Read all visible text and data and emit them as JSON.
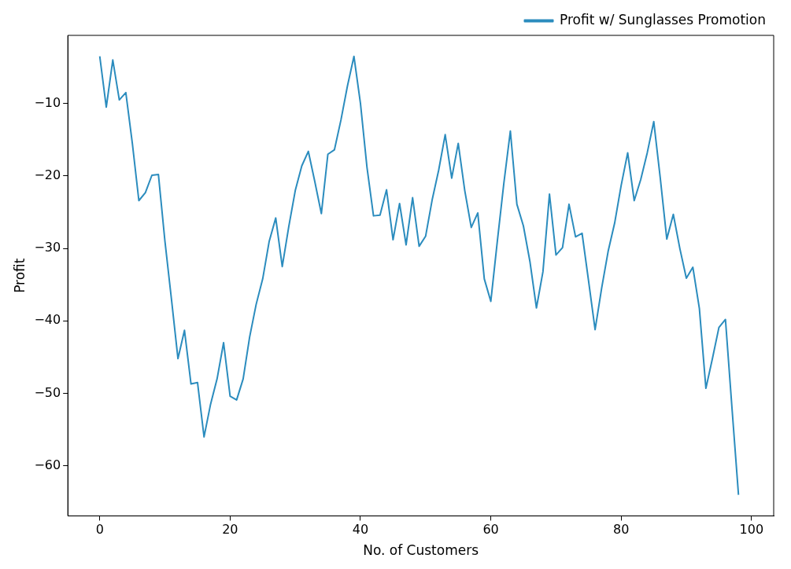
{
  "chart_data": {
    "type": "line",
    "xlabel": "No. of Customers",
    "ylabel": "Profit",
    "x": [
      0,
      1,
      2,
      3,
      4,
      5,
      6,
      7,
      8,
      9,
      10,
      11,
      12,
      13,
      14,
      15,
      16,
      17,
      18,
      19,
      20,
      21,
      22,
      23,
      24,
      25,
      26,
      27,
      28,
      29,
      30,
      31,
      32,
      33,
      34,
      35,
      36,
      37,
      38,
      39,
      40,
      41,
      42,
      43,
      44,
      45,
      46,
      47,
      48,
      49,
      50,
      51,
      52,
      53,
      54,
      55,
      56,
      57,
      58,
      59,
      60,
      61,
      62,
      63,
      64,
      65,
      66,
      67,
      68,
      69,
      70,
      71,
      72,
      73,
      74,
      75,
      76,
      77,
      78,
      79,
      80,
      81,
      82,
      83,
      84,
      85,
      86,
      87,
      88,
      89,
      90,
      91,
      92,
      93,
      94,
      95,
      96,
      97,
      98
    ],
    "series": [
      {
        "name": "Profit w/ Sunglasses Promotion",
        "color": "#2b8cbe",
        "values": [
          -3.5,
          -10.5,
          -4,
          -9.5,
          -8.5,
          -15.5,
          -23.4,
          -22.3,
          -19.9,
          -19.8,
          -29,
          -37,
          -45.2,
          -41.3,
          -48.7,
          -48.5,
          -56,
          -51.5,
          -48,
          -43,
          -50.4,
          -50.9,
          -48,
          -42.2,
          -37.7,
          -34.2,
          -29,
          -25.8,
          -32.5,
          -27,
          -22,
          -18.6,
          -16.6,
          -20.8,
          -25.2,
          -17,
          -16.4,
          -12.3,
          -7.6,
          -3.5,
          -10,
          -18.8,
          -25.5,
          -25.4,
          -21.9,
          -28.8,
          -23.8,
          -29.5,
          -23,
          -29.7,
          -28.3,
          -23.3,
          -19.2,
          -14.3,
          -20.3,
          -15.5,
          -22,
          -27.1,
          -25.1,
          -34.2,
          -37.3,
          -29,
          -21,
          -13.8,
          -23.9,
          -26.9,
          -31.8,
          -38.2,
          -33.2,
          -22.5,
          -30.9,
          -29.9,
          -23.9,
          -28.4,
          -27.9,
          -34.5,
          -41.2,
          -35.5,
          -30.4,
          -26.5,
          -21.3,
          -16.8,
          -23.4,
          -20.5,
          -16.8,
          -12.5,
          -20.3,
          -28.7,
          -25.3,
          -30,
          -34.1,
          -32.6,
          -38.3,
          -49.3,
          -45.2,
          -40.9,
          -39.8,
          -52,
          -64
        ]
      }
    ],
    "xlim": [
      -4.9,
      103.4
    ],
    "ylim": [
      -66.9,
      -0.6
    ],
    "xticks": [
      0,
      20,
      40,
      60,
      80,
      100
    ],
    "yticks": [
      -60,
      -50,
      -40,
      -30,
      -20,
      -10
    ],
    "grid": false,
    "legend": "top right",
    "marker": "none",
    "line_style": "solid"
  }
}
